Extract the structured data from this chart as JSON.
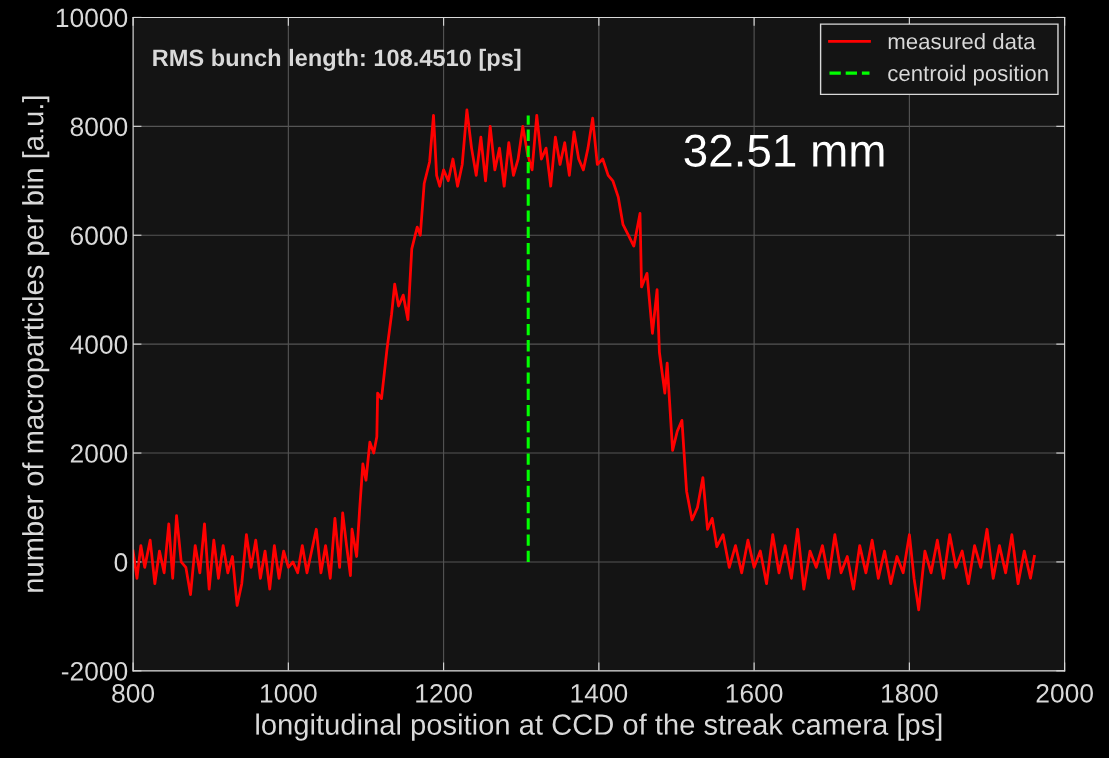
{
  "chart_data": {
    "type": "line",
    "xlabel": "longitudinal position at CCD of the streak camera [ps]",
    "ylabel": "number of macroparticles per bin [a.u.]",
    "xlim": [
      800,
      2000
    ],
    "ylim": [
      -2000,
      10000
    ],
    "xticks": [
      800,
      1000,
      1200,
      1400,
      1600,
      1800,
      2000
    ],
    "yticks": [
      -2000,
      0,
      2000,
      4000,
      6000,
      8000,
      10000
    ],
    "grid": true,
    "legend": "top right",
    "line_style": "solid",
    "marker": "none",
    "annotations": [
      "RMS bunch length: 108.4510 [ps]",
      "32.51 mm"
    ],
    "series": [
      {
        "name": "measured data",
        "color": "#ff0000",
        "x": [
          800,
          805,
          810,
          815,
          822,
          828,
          834,
          840,
          846,
          851,
          856,
          862,
          868,
          874,
          880,
          886,
          892,
          898,
          904,
          910,
          916,
          922,
          928,
          934,
          940,
          946,
          952,
          958,
          964,
          970,
          976,
          982,
          988,
          994,
          1000,
          1006,
          1012,
          1018,
          1024,
          1030,
          1036,
          1042,
          1048,
          1054,
          1060,
          1066,
          1070,
          1075,
          1080,
          1082,
          1088,
          1092,
          1096,
          1100,
          1105,
          1110,
          1114,
          1115,
          1120,
          1127,
          1133,
          1137,
          1142,
          1148,
          1154,
          1159,
          1166,
          1170,
          1175,
          1182,
          1187,
          1191,
          1195,
          1200,
          1206,
          1212,
          1218,
          1224,
          1230,
          1236,
          1242,
          1248,
          1254,
          1260,
          1266,
          1272,
          1278,
          1284,
          1290,
          1296,
          1302,
          1308,
          1314,
          1320,
          1326,
          1332,
          1338,
          1344,
          1350,
          1356,
          1362,
          1368,
          1374,
          1380,
          1386,
          1392,
          1398,
          1405,
          1412,
          1418,
          1425,
          1431,
          1438,
          1445,
          1453,
          1455,
          1462,
          1469,
          1475,
          1478,
          1485,
          1488,
          1495,
          1501,
          1507,
          1513,
          1520,
          1527,
          1534,
          1540,
          1546,
          1552,
          1560,
          1568,
          1576,
          1584,
          1592,
          1600,
          1608,
          1616,
          1624,
          1632,
          1640,
          1648,
          1656,
          1664,
          1672,
          1680,
          1688,
          1696,
          1704,
          1712,
          1720,
          1728,
          1736,
          1744,
          1752,
          1760,
          1768,
          1776,
          1784,
          1792,
          1800,
          1806,
          1812,
          1820,
          1828,
          1836,
          1844,
          1852,
          1860,
          1868,
          1876,
          1884,
          1892,
          1900,
          1908,
          1916,
          1924,
          1932,
          1940,
          1948,
          1956,
          1961
        ],
        "values": [
          200,
          -300,
          300,
          -100,
          400,
          -400,
          200,
          -200,
          700,
          -300,
          850,
          0,
          -100,
          -600,
          300,
          -200,
          700,
          -500,
          400,
          -300,
          300,
          -200,
          100,
          -800,
          -400,
          500,
          -100,
          400,
          -300,
          200,
          -500,
          300,
          -300,
          200,
          -100,
          0,
          -200,
          300,
          -200,
          200,
          600,
          -200,
          300,
          -300,
          800,
          -100,
          900,
          300,
          -250,
          600,
          100,
          1000,
          1800,
          1500,
          2200,
          2000,
          2300,
          3100,
          3000,
          3900,
          4550,
          5100,
          4700,
          4900,
          4450,
          5750,
          6150,
          6000,
          6950,
          7350,
          8200,
          7100,
          6900,
          7200,
          7000,
          7400,
          6900,
          7300,
          8300,
          7600,
          7100,
          7800,
          7000,
          8000,
          7200,
          7600,
          6900,
          7700,
          7100,
          7400,
          8000,
          7500,
          7200,
          8200,
          7400,
          7600,
          6900,
          7800,
          7300,
          7700,
          7100,
          7900,
          7400,
          7200,
          7600,
          8150,
          7300,
          7400,
          7100,
          7000,
          6700,
          6200,
          6000,
          5800,
          6400,
          5050,
          5300,
          4200,
          5000,
          3850,
          3100,
          3650,
          2050,
          2400,
          2600,
          1300,
          770,
          1000,
          1550,
          600,
          800,
          280,
          500,
          -100,
          300,
          -200,
          400,
          -100,
          200,
          -400,
          500,
          -200,
          300,
          -300,
          600,
          -500,
          200,
          -100,
          300,
          -300,
          500,
          -200,
          100,
          -500,
          300,
          -200,
          400,
          -300,
          200,
          -400,
          100,
          -200,
          500,
          -300,
          -880,
          200,
          -200,
          400,
          -300,
          500,
          -100,
          200,
          -400,
          300,
          -100,
          600,
          -300,
          300,
          -200,
          500,
          -400,
          200,
          -300,
          100
        ]
      },
      {
        "name": "centroid position",
        "color": "#00ff00",
        "line_style": "dashed",
        "x": [
          1309,
          1309
        ],
        "values": [
          0,
          8200
        ]
      }
    ]
  }
}
